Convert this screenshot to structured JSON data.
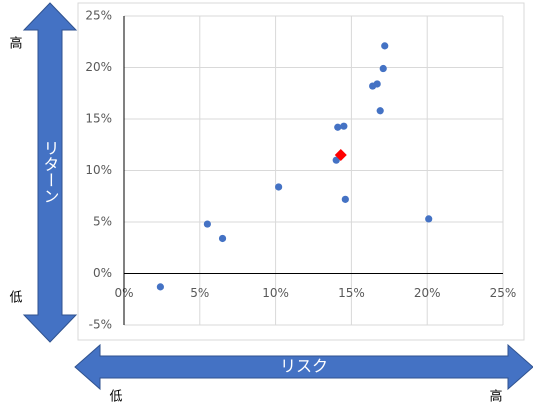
{
  "chart_data": {
    "type": "scatter",
    "xlim": [
      0,
      25
    ],
    "xticks": [
      {
        "value": 0,
        "label": "0%"
      },
      {
        "value": 5,
        "label": "5%"
      },
      {
        "value": 10,
        "label": "10%"
      },
      {
        "value": 15,
        "label": "15%"
      },
      {
        "value": 20,
        "label": "20%"
      },
      {
        "value": 25,
        "label": "25%"
      }
    ],
    "ylim": [
      -5,
      25
    ],
    "yticks": [
      {
        "value": -5,
        "label": "-5%"
      },
      {
        "value": 0,
        "label": "0%"
      },
      {
        "value": 5,
        "label": "5%"
      },
      {
        "value": 10,
        "label": "10%"
      },
      {
        "value": 15,
        "label": "15%"
      },
      {
        "value": 20,
        "label": "20%"
      },
      {
        "value": 25,
        "label": "25%"
      }
    ],
    "grid": true,
    "series": [
      {
        "color": "#4472c4",
        "marker": "circle",
        "x": [
          2.4,
          5.5,
          6.5,
          10.2,
          14.0,
          14.1,
          14.5,
          14.6,
          16.4,
          16.7,
          16.9,
          17.1,
          17.2,
          20.1
        ],
        "values": [
          -1.3,
          4.8,
          3.4,
          8.4,
          11.0,
          14.2,
          14.3,
          7.2,
          18.2,
          18.4,
          15.8,
          19.9,
          22.1,
          5.3
        ]
      },
      {
        "color": "#ff0000",
        "marker": "diamond",
        "x": [
          14.3
        ],
        "values": [
          11.5
        ]
      }
    ],
    "y_arrow": {
      "label": "リターン",
      "high": "高",
      "low": "低"
    },
    "x_arrow": {
      "label": "リスク",
      "low": "低",
      "high": "高"
    }
  }
}
